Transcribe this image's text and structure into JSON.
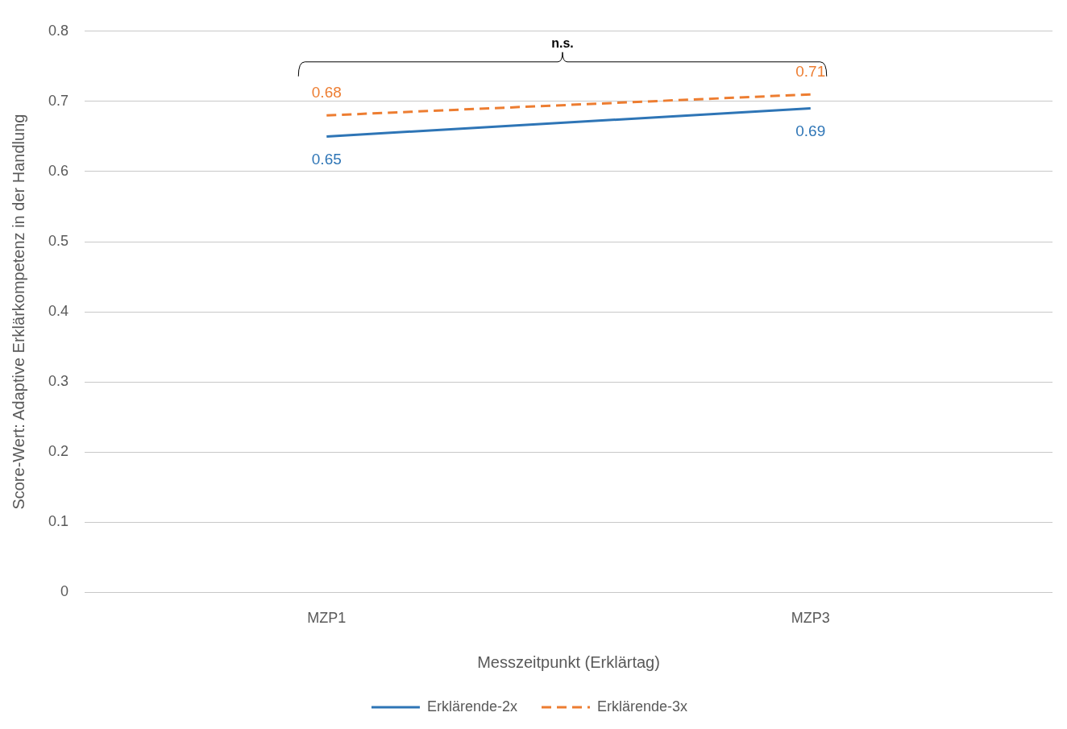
{
  "chart_data": {
    "type": "line",
    "xlabel": "Messzeitpunkt (Erklärtag)",
    "ylabel": "Score-Wert: Adaptive Erklärkompetenz in der Handlung",
    "categories": [
      "MZP1",
      "MZP3"
    ],
    "series": [
      {
        "name": "Erklärende-2x",
        "color": "#2e75b6",
        "values": [
          0.65,
          0.69
        ],
        "line_style": "solid"
      },
      {
        "name": "Erklärende-3x",
        "color": "#ed7d31",
        "values": [
          0.68,
          0.71
        ],
        "line_style": "dashed"
      }
    ],
    "ylim": [
      0,
      0.8
    ],
    "yticks": [
      0,
      0.1,
      0.2,
      0.3,
      0.4,
      0.5,
      0.6,
      0.7,
      0.8
    ],
    "grid": "y",
    "legend": "bottom",
    "data_labels": true,
    "marker": "none",
    "annotations": [
      "n.s."
    ]
  }
}
